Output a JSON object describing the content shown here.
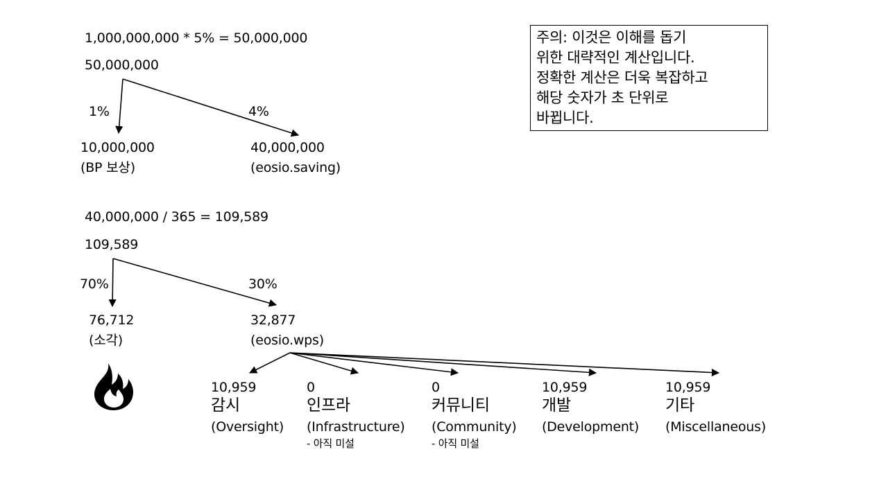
{
  "top": {
    "formula": "1,000,000,000 * 5% = 50,000,000",
    "root_value": "50,000,000",
    "left_pct": "1%",
    "right_pct": "4%",
    "left_value": "10,000,000",
    "left_label": "(BP 보상)",
    "right_value": "40,000,000",
    "right_label": "(eosio.saving)"
  },
  "middle": {
    "formula": "40,000,000 / 365 = 109,589",
    "root_value": "109,589",
    "left_pct": "70%",
    "right_pct": "30%",
    "left_value": "76,712",
    "left_label": "(소각)",
    "right_value": "32,877",
    "right_label": "(eosio.wps)"
  },
  "wps_categories": [
    {
      "value": "10,959",
      "korean": "감시",
      "english": "(Oversight)",
      "note": ""
    },
    {
      "value": "0",
      "korean": "인프라",
      "english": "(Infrastructure)",
      "note": "- 아직 미설"
    },
    {
      "value": "0",
      "korean": "커뮤니티",
      "english": "(Community)",
      "note": "- 아직 미설"
    },
    {
      "value": "10,959",
      "korean": "개발",
      "english": "(Development)",
      "note": ""
    },
    {
      "value": "10,959",
      "korean": "기타",
      "english": "(Miscellaneous)",
      "note": ""
    }
  ],
  "note_box": {
    "lines": [
      "주의: 이것은 이해를 돕기",
      "위한 대략적인 계산입니다.",
      "정확한 계산은 더욱 복잡하고",
      "해당 숫자가 초 단위로",
      "바뀝니다."
    ]
  },
  "icons": {
    "burn": "fire-icon"
  }
}
